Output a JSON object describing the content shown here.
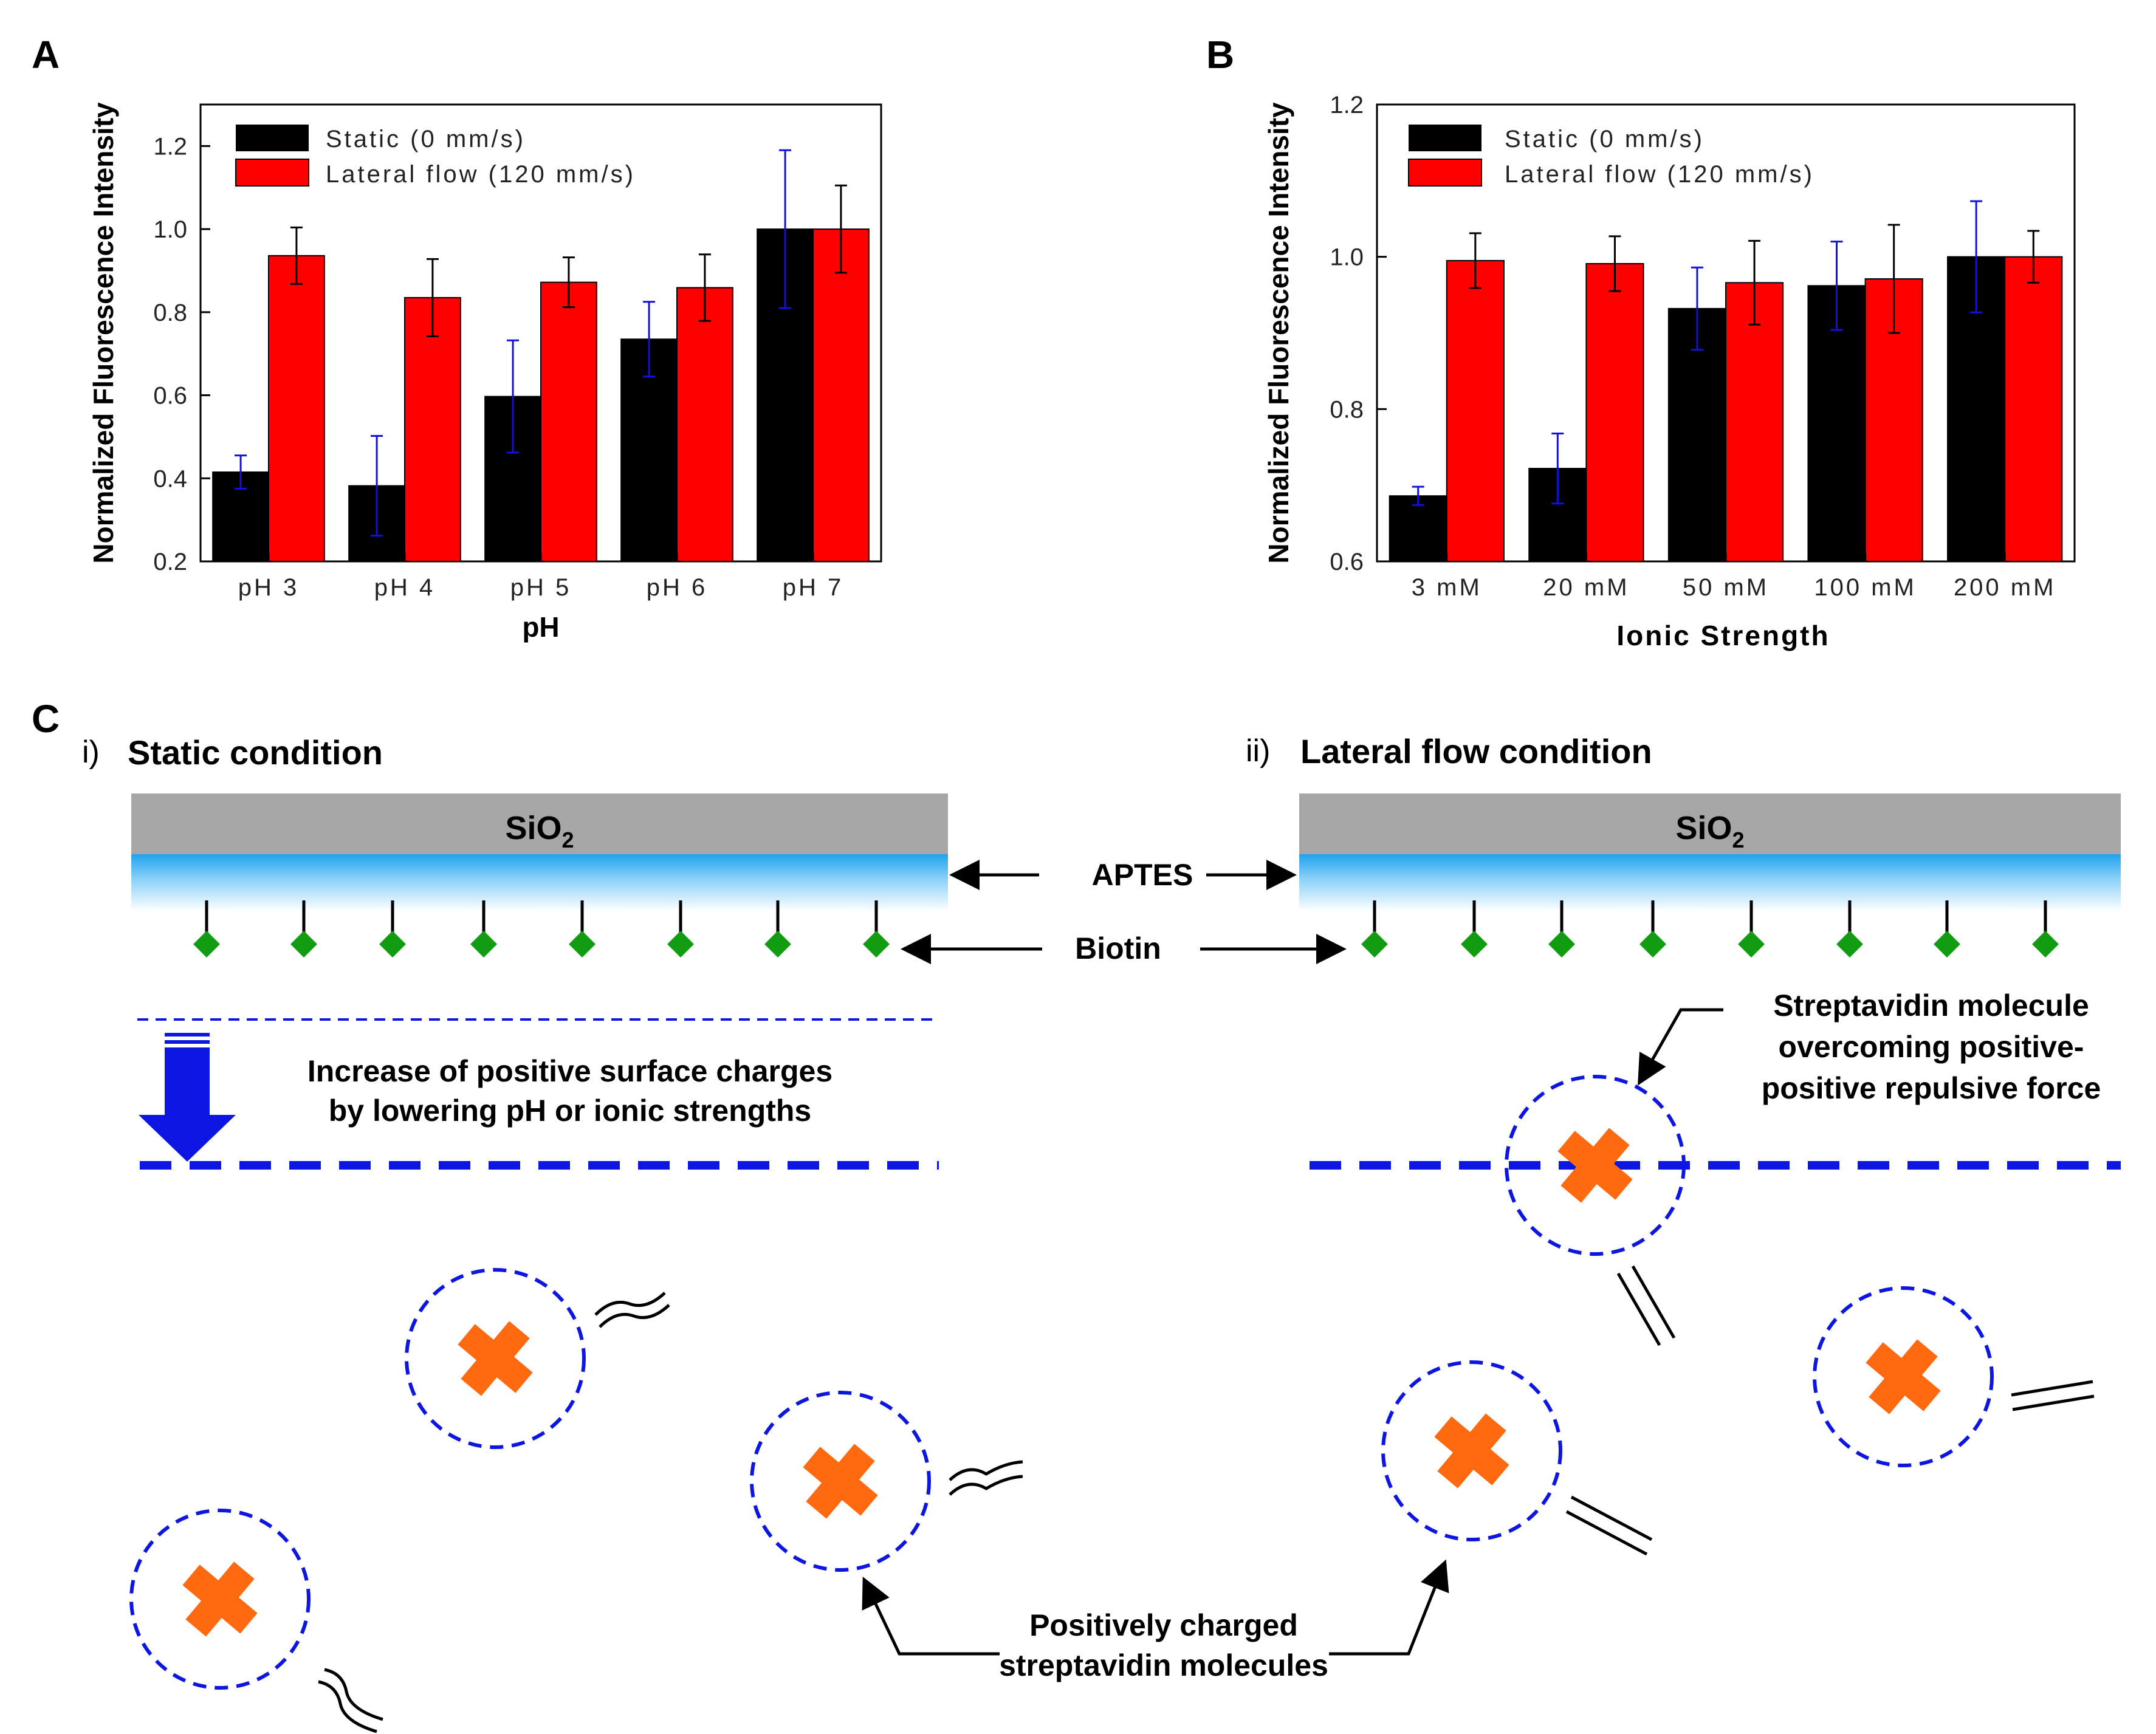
{
  "chart_data": [
    {
      "panel": "A",
      "type": "bar",
      "xlabel": "pH",
      "ylabel": "Normalized Fluorescence Intensity",
      "categories": [
        "pH 3",
        "pH 4",
        "pH 5",
        "pH 6",
        "pH 7"
      ],
      "ylim": [
        0.2,
        1.3
      ],
      "yticks": [
        "0.2",
        "0.4",
        "0.6",
        "0.8",
        "1.0",
        "1.2"
      ],
      "yticks_values": [
        0.2,
        0.4,
        0.6,
        0.8,
        1.0,
        1.2
      ],
      "legend_position": "top-left",
      "series": [
        {
          "name": "Static (0 mm/s)",
          "color": "#000000",
          "error_color": "#1010e0",
          "values": [
            0.415,
            0.382,
            0.597,
            0.735,
            1.0
          ],
          "errors": [
            0.04,
            0.12,
            0.135,
            0.09,
            0.19
          ]
        },
        {
          "name": "Lateral flow (120 mm/s)",
          "color": "#ff0000",
          "error_color": "#000000",
          "values": [
            0.936,
            0.835,
            0.872,
            0.859,
            1.0
          ],
          "errors": [
            0.068,
            0.093,
            0.06,
            0.08,
            0.105
          ]
        }
      ]
    },
    {
      "panel": "B",
      "type": "bar",
      "xlabel": "Ionic Strength",
      "ylabel": "Normalized Fluorescence Intensity",
      "categories": [
        "3 mM",
        "20 mM",
        "50 mM",
        "100 mM",
        "200 mM"
      ],
      "ylim": [
        0.6,
        1.2
      ],
      "yticks": [
        "0.6",
        "0.8",
        "1.0",
        "1.2"
      ],
      "yticks_values": [
        0.6,
        0.8,
        1.0,
        1.2
      ],
      "legend_position": "top-left",
      "series": [
        {
          "name": "Static (0 mm/s)",
          "color": "#000000",
          "error_color": "#1010e0",
          "values": [
            0.686,
            0.722,
            0.932,
            0.962,
            1.0
          ],
          "errors": [
            0.012,
            0.046,
            0.054,
            0.058,
            0.073
          ]
        },
        {
          "name": "Lateral flow (120 mm/s)",
          "color": "#ff0000",
          "error_color": "#000000",
          "values": [
            0.995,
            0.991,
            0.966,
            0.971,
            1.0
          ],
          "errors": [
            0.036,
            0.036,
            0.055,
            0.071,
            0.034
          ]
        }
      ]
    }
  ],
  "panels": {
    "a": "A",
    "b": "B",
    "c": "C"
  },
  "schematic": {
    "static_index": "i)",
    "static_title": "Static condition",
    "flow_index": "ii)",
    "flow_title": "Lateral flow condition",
    "sio2": "SiO",
    "sio2_sub": "2",
    "aptes": "APTES",
    "biotin": "Biotin",
    "increase_line1": "Increase of positive surface charges",
    "increase_line2": "by lowering pH or ionic strengths",
    "overcome_line1": "Streptavidin molecule",
    "overcome_line2": "overcoming positive-",
    "overcome_line3": "positive repulsive force",
    "positive_line1": "Positively charged",
    "positive_line2": "streptavidin molecules"
  },
  "colors": {
    "sio2": "#a6a6a6",
    "aptes_top": "#1fa2ee",
    "biotin": "#119c11",
    "charge_line": "#0c16e0",
    "molecule": "#ff6a10",
    "bar_static": "#000000",
    "bar_flow": "#ff0000"
  }
}
